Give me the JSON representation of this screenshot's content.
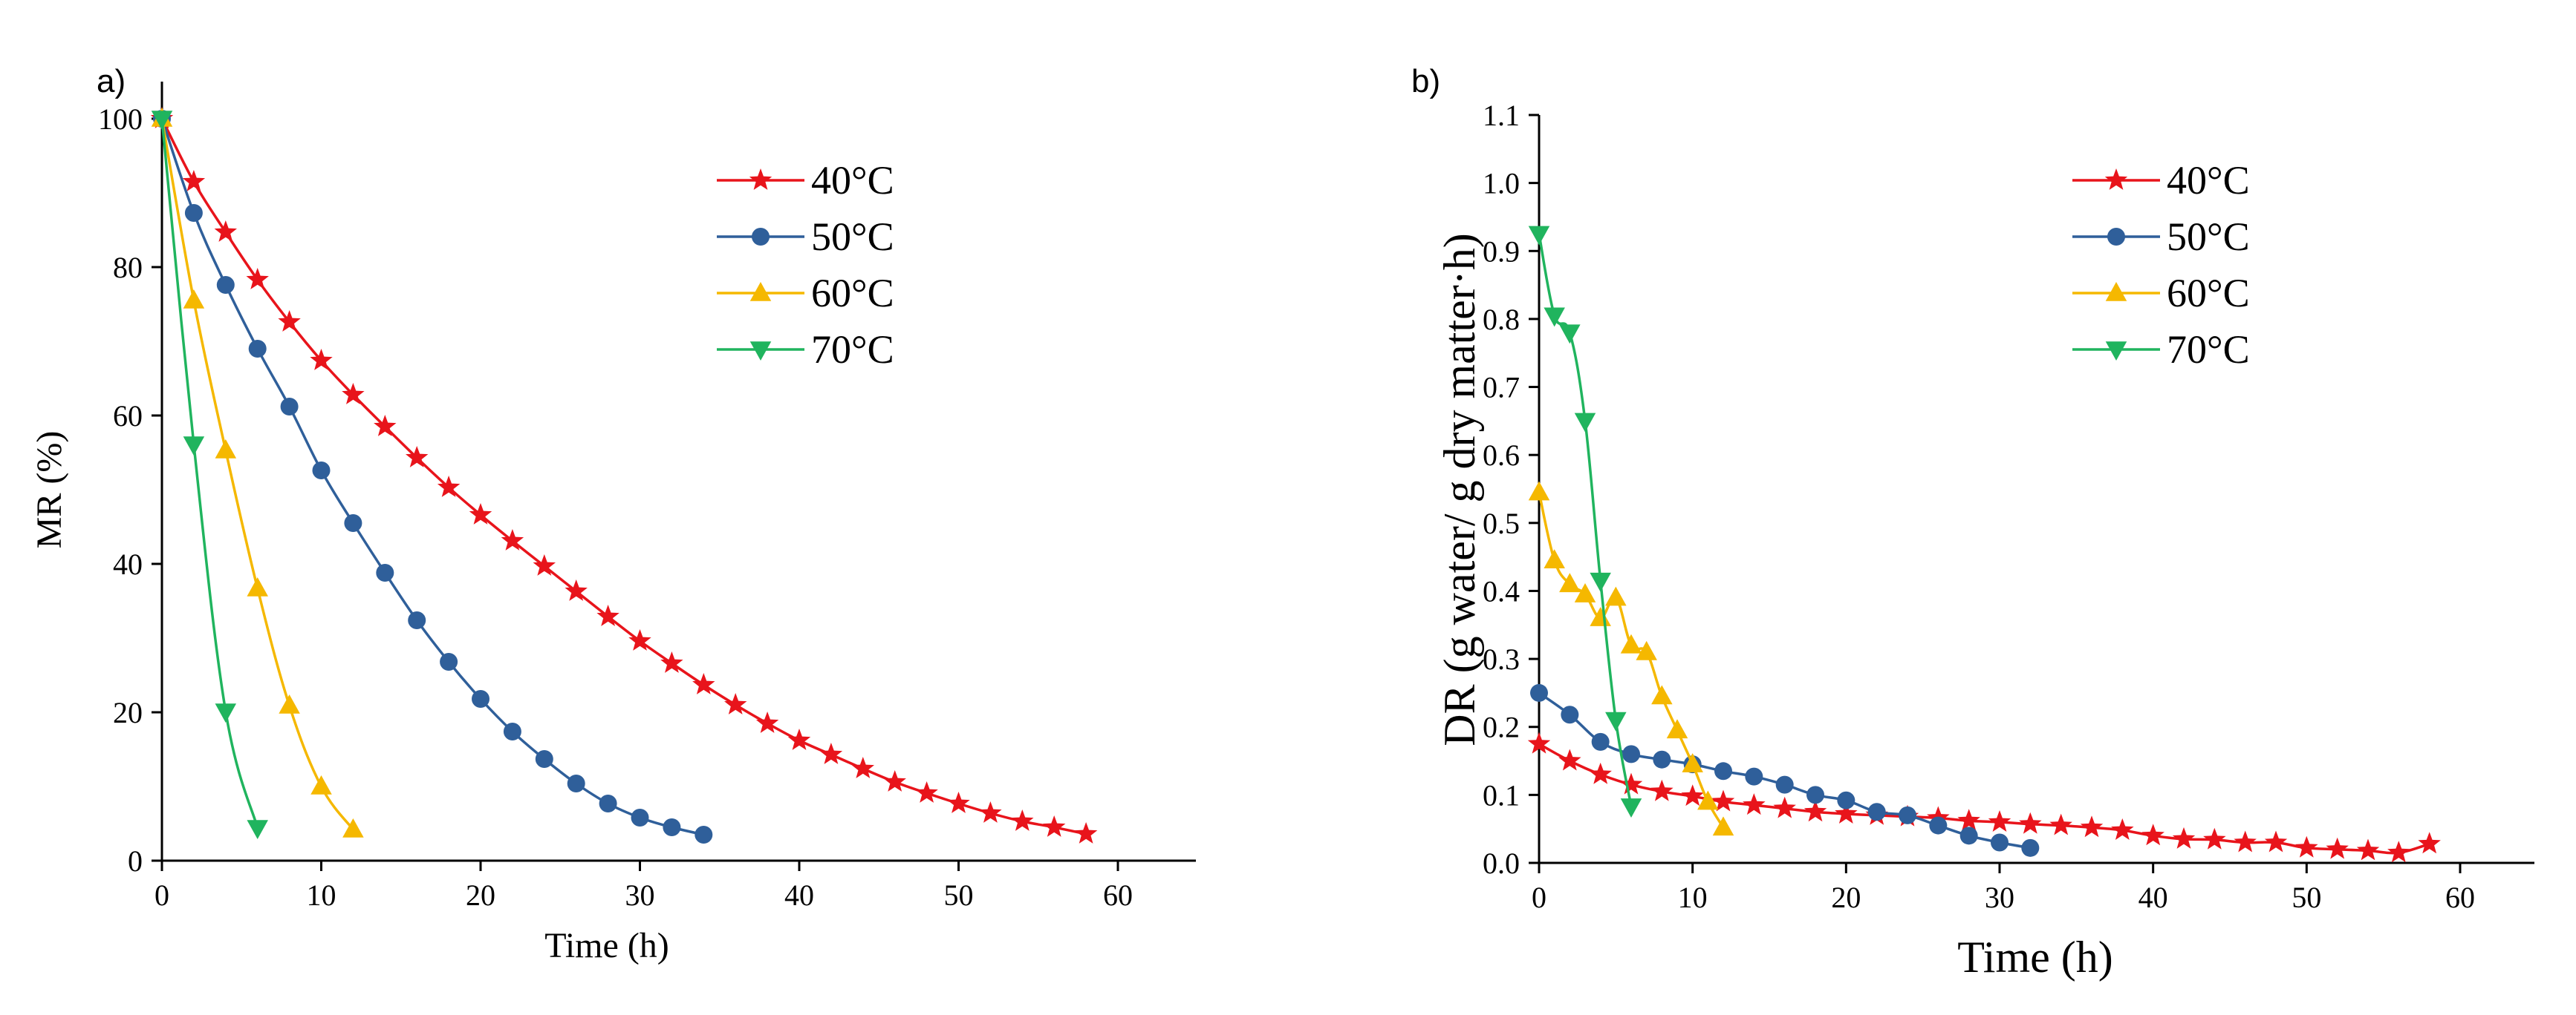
{
  "panels": [
    {
      "label": "a)",
      "xlabel": "Time (h)",
      "ylabel": "MR (%)",
      "xticks": [
        "0",
        "10",
        "20",
        "30",
        "40",
        "50",
        "60"
      ],
      "yticks": [
        "0",
        "20",
        "40",
        "60",
        "80",
        "100"
      ]
    },
    {
      "label": "b)",
      "xlabel": "Time (h)",
      "ylabel": "DR (g water/ g dry matter·h)",
      "xticks": [
        "0",
        "10",
        "20",
        "30",
        "40",
        "50",
        "60"
      ],
      "yticks": [
        "0.0",
        "0.1",
        "0.2",
        "0.3",
        "0.4",
        "0.5",
        "0.6",
        "0.7",
        "0.8",
        "0.9",
        "1.0",
        "1.1"
      ]
    }
  ],
  "series_style": {
    "40°C": {
      "color": "#e8141b",
      "marker": "star"
    },
    "50°C": {
      "color": "#2f5f9a",
      "marker": "circle"
    },
    "60°C": {
      "color": "#f5b800",
      "marker": "triangle-up"
    },
    "70°C": {
      "color": "#20b45e",
      "marker": "triangle-down"
    }
  },
  "chart_data": [
    {
      "type": "line",
      "title": "",
      "xlabel": "Time (h)",
      "ylabel": "MR (%)",
      "xlim": [
        0,
        65
      ],
      "ylim": [
        0,
        105
      ],
      "grid": false,
      "legend_position": "top-right",
      "series": [
        {
          "name": "40°C",
          "x": [
            0,
            2,
            4,
            6,
            8,
            10,
            12,
            14,
            16,
            18,
            20,
            22,
            24,
            26,
            28,
            30,
            32,
            34,
            36,
            38,
            40,
            42,
            44,
            46,
            48,
            50,
            52,
            54,
            56,
            58
          ],
          "y": [
            100,
            91.5,
            84.7,
            78.3,
            72.6,
            67.4,
            62.8,
            58.5,
            54.3,
            50.3,
            46.6,
            43.1,
            39.7,
            36.3,
            32.9,
            29.6,
            26.6,
            23.7,
            21.0,
            18.5,
            16.2,
            14.3,
            12.4,
            10.6,
            9.1,
            7.7,
            6.4,
            5.3,
            4.5,
            3.6
          ]
        },
        {
          "name": "50°C",
          "x": [
            0,
            2,
            4,
            6,
            8,
            10,
            12,
            14,
            16,
            18,
            20,
            22,
            24,
            26,
            28,
            30,
            32,
            34
          ],
          "y": [
            100,
            87.3,
            77.6,
            69.0,
            61.2,
            52.6,
            45.5,
            38.8,
            32.4,
            26.8,
            21.8,
            17.4,
            13.7,
            10.4,
            7.7,
            5.8,
            4.5,
            3.5
          ]
        },
        {
          "name": "60°C",
          "x": [
            0,
            2,
            4,
            6,
            8,
            10,
            12
          ],
          "y": [
            100,
            75.5,
            55.3,
            36.7,
            20.9,
            10.0,
            4.2
          ]
        },
        {
          "name": "70°C",
          "x": [
            0,
            2,
            4,
            6
          ],
          "y": [
            100,
            56.1,
            20.1,
            4.4
          ]
        }
      ]
    },
    {
      "type": "line",
      "title": "",
      "xlabel": "Time (h)",
      "ylabel": "DR (g water/ g dry matter·h)",
      "xlim": [
        0,
        65
      ],
      "ylim": [
        0,
        1.1
      ],
      "grid": false,
      "legend_position": "top-right",
      "series": [
        {
          "name": "40°C",
          "x": [
            0,
            2,
            4,
            6,
            8,
            10,
            12,
            14,
            16,
            18,
            20,
            22,
            24,
            26,
            28,
            30,
            32,
            34,
            36,
            38,
            40,
            42,
            44,
            46,
            48,
            50,
            52,
            54,
            56,
            58
          ],
          "y": [
            0.175,
            0.15,
            0.13,
            0.115,
            0.105,
            0.098,
            0.09,
            0.085,
            0.08,
            0.075,
            0.072,
            0.07,
            0.068,
            0.066,
            0.062,
            0.06,
            0.057,
            0.055,
            0.052,
            0.048,
            0.04,
            0.035,
            0.034,
            0.03,
            0.03,
            0.022,
            0.02,
            0.018,
            0.015,
            0.028
          ]
        },
        {
          "name": "50°C",
          "x": [
            0,
            2,
            4,
            6,
            8,
            10,
            12,
            14,
            16,
            18,
            20,
            22,
            24,
            26,
            28,
            30,
            32
          ],
          "y": [
            0.25,
            0.218,
            0.178,
            0.16,
            0.152,
            0.145,
            0.135,
            0.127,
            0.115,
            0.1,
            0.092,
            0.075,
            0.07,
            0.055,
            0.04,
            0.03,
            0.022
          ]
        },
        {
          "name": "60°C",
          "x": [
            0,
            1,
            2,
            3,
            4,
            5,
            6,
            7,
            8,
            9,
            10,
            11,
            12
          ],
          "y": [
            0.545,
            0.445,
            0.41,
            0.395,
            0.36,
            0.39,
            0.32,
            0.31,
            0.245,
            0.195,
            0.145,
            0.09,
            0.052
          ]
        },
        {
          "name": "70°C",
          "x": [
            0,
            1,
            2,
            3,
            4,
            5,
            6
          ],
          "y": [
            0.925,
            0.805,
            0.78,
            0.65,
            0.415,
            0.21,
            0.083
          ]
        }
      ]
    }
  ]
}
